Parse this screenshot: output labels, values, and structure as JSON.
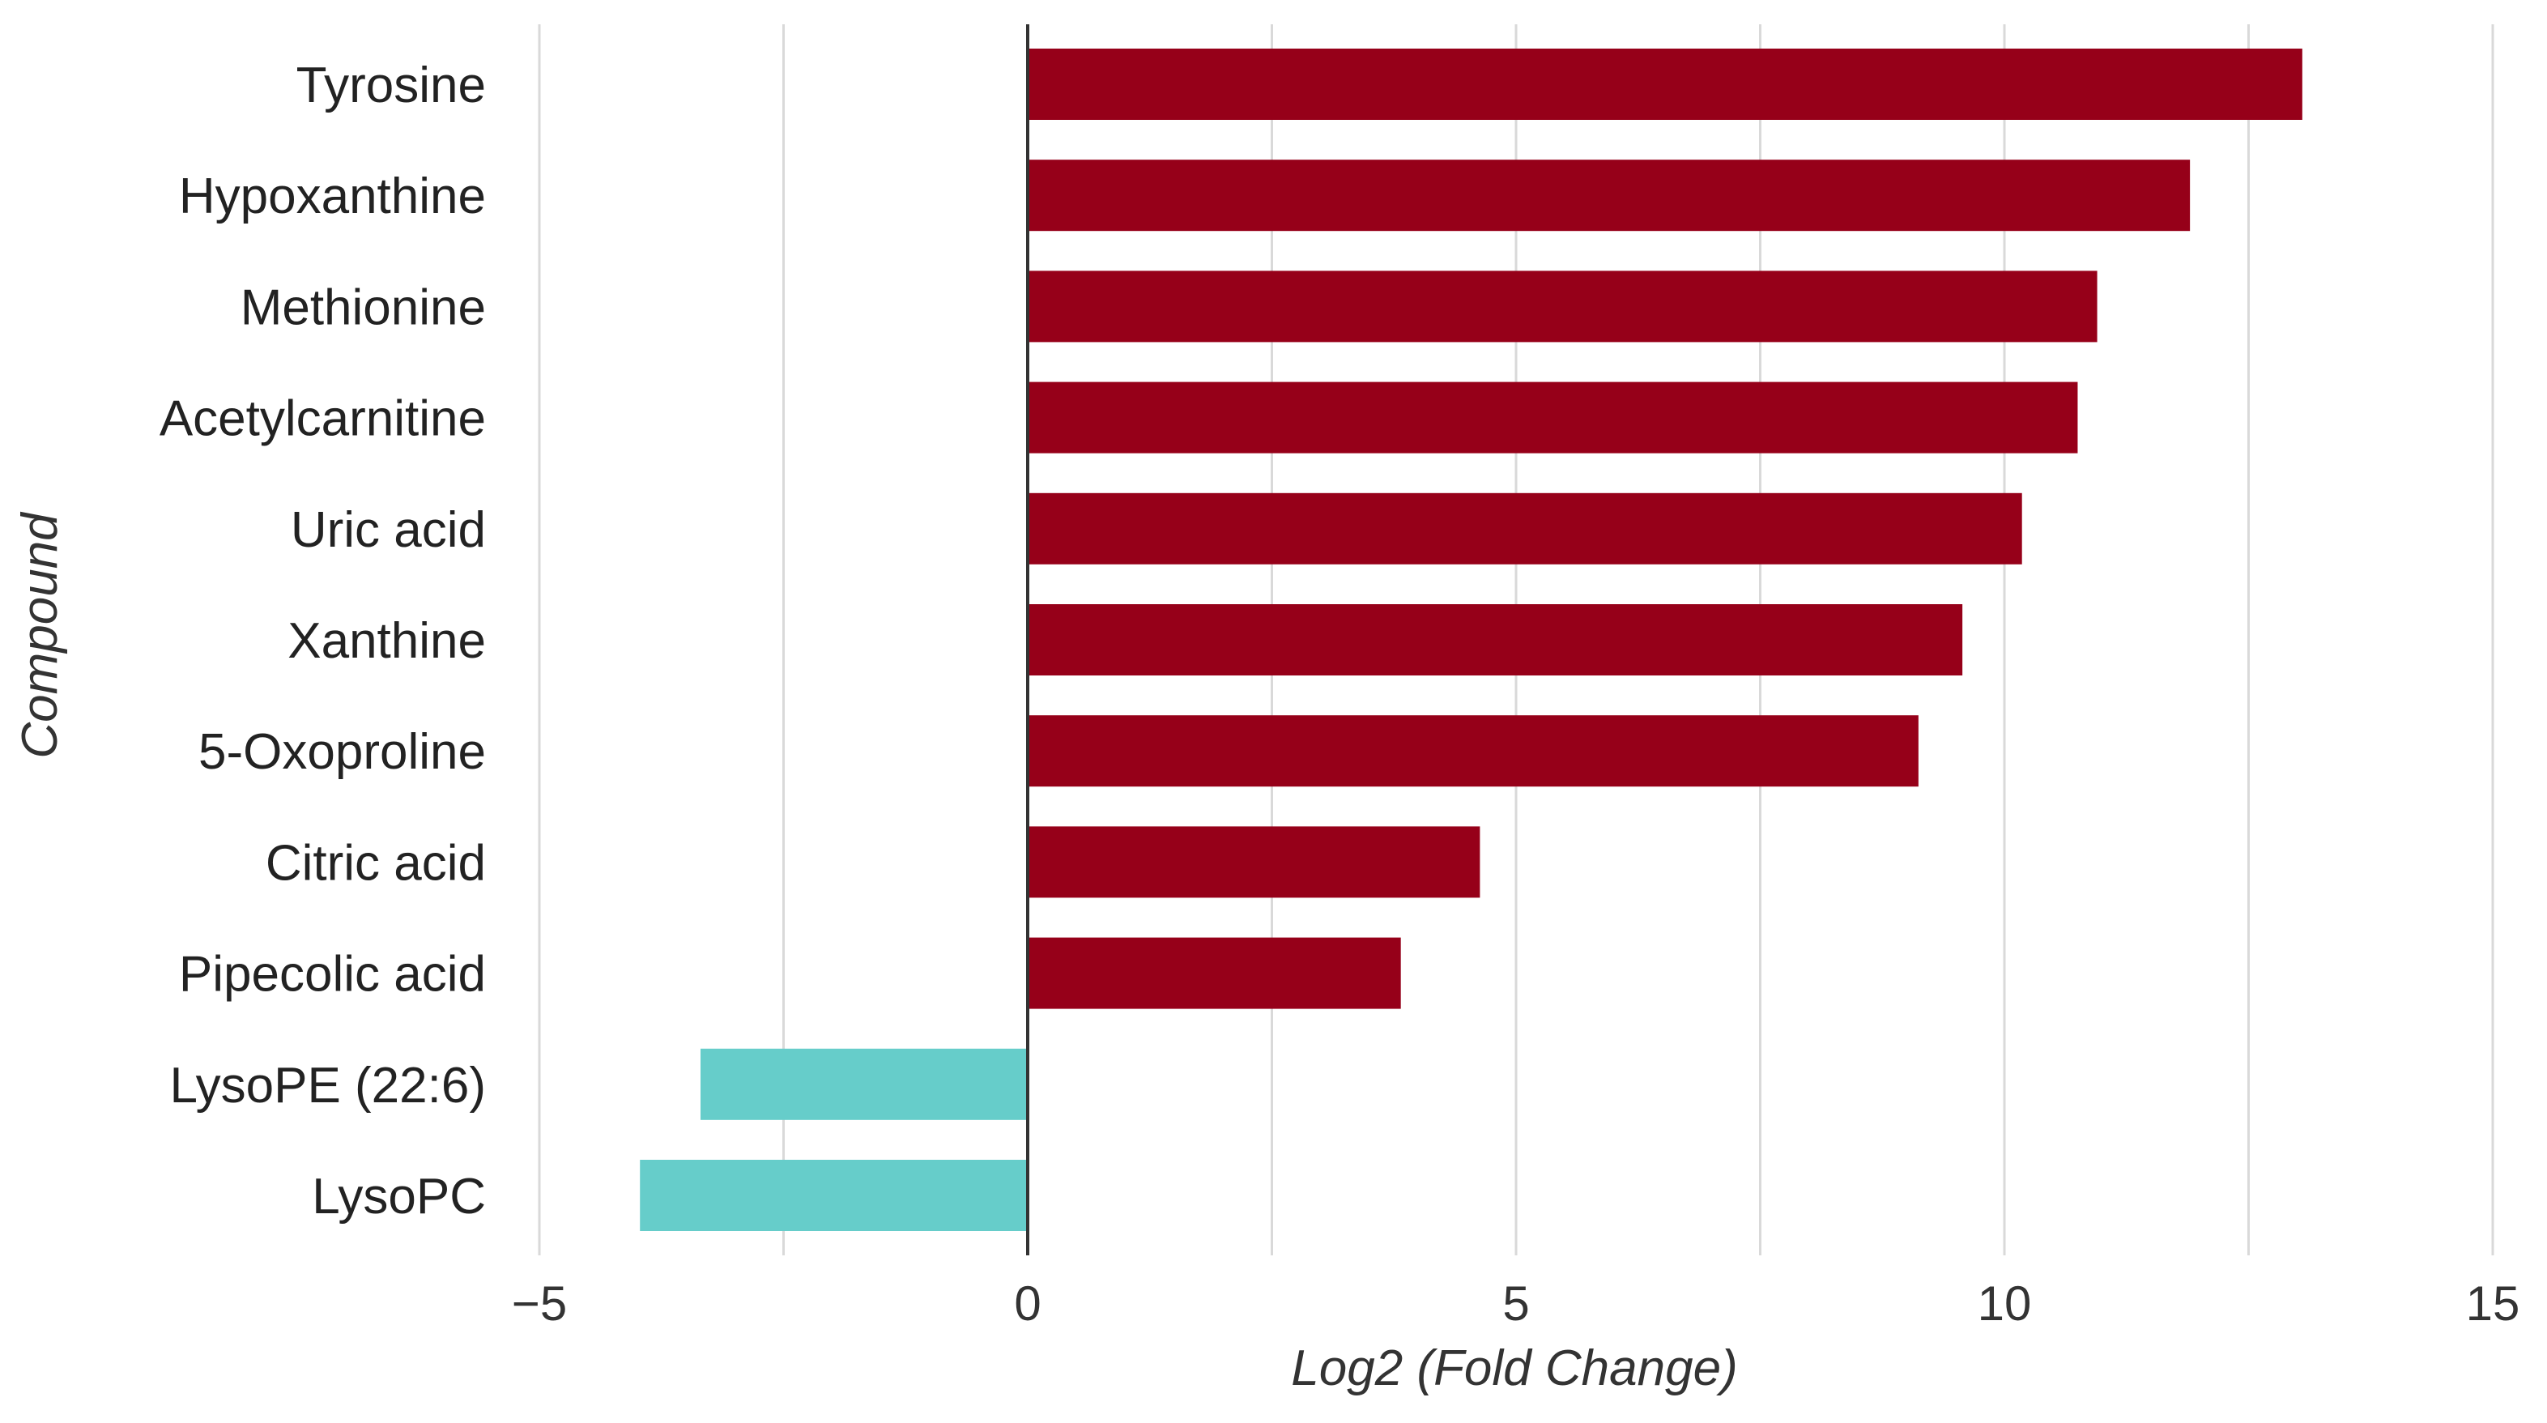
{
  "chart_data": {
    "type": "bar",
    "orientation": "horizontal",
    "categories": [
      "Tyrosine",
      "Hypoxanthine",
      "Methionine",
      "Acetylcarnitine",
      "Uric acid",
      "Xanthine",
      "5-Oxoproline",
      "Citric acid",
      "Pipecolic acid",
      "LysoPE (22:6)",
      "LysoPC"
    ],
    "values": [
      13.05,
      11.9,
      10.95,
      10.75,
      10.18,
      9.57,
      9.12,
      4.63,
      3.82,
      -3.35,
      -3.97
    ],
    "xlabel": "Log2 (Fold Change)",
    "ylabel": "Compound",
    "xlim": [
      -5,
      15
    ],
    "xticks": [
      -5,
      0,
      5,
      10,
      15
    ],
    "xtick_labels": [
      "−5",
      "0",
      "5",
      "10",
      "15"
    ],
    "grid": "vertical",
    "colors": {
      "positive": "#960019",
      "negative": "#66CDCA"
    }
  }
}
